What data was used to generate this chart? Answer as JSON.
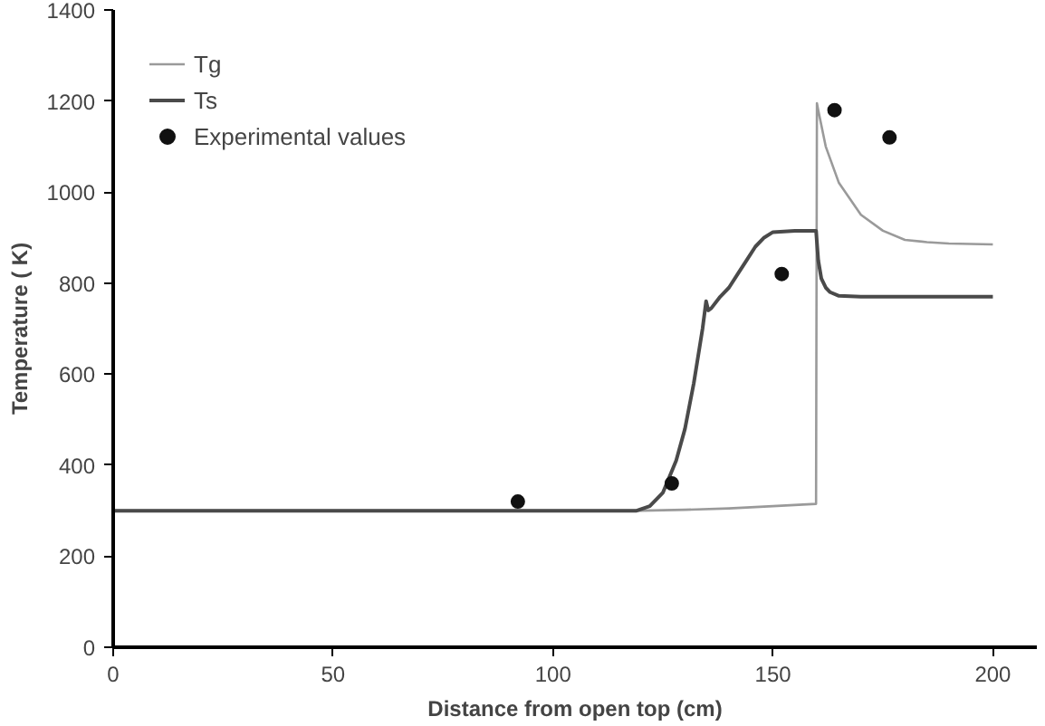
{
  "chart_data": {
    "type": "line",
    "xlabel": "Distance from open top (cm)",
    "ylabel": "Temperature ( K)",
    "xlim": [
      0,
      210
    ],
    "ylim": [
      0,
      1400
    ],
    "xticks": [
      0,
      50,
      100,
      150,
      200
    ],
    "yticks": [
      0,
      200,
      400,
      600,
      800,
      1000,
      1200,
      1400
    ],
    "grid": false,
    "legend": "top left",
    "series": [
      {
        "name": "Tg",
        "color": "#9a9a9a",
        "x": [
          0,
          60,
          120,
          130,
          140,
          150,
          159.8,
          160,
          160.3,
          162,
          165,
          170,
          175,
          180,
          185,
          190,
          200
        ],
        "values": [
          300,
          300,
          300,
          302,
          305,
          310,
          315,
          1195,
          1180,
          1100,
          1020,
          950,
          915,
          895,
          890,
          887,
          885
        ]
      },
      {
        "name": "Ts",
        "color": "#4a4a4a",
        "x": [
          0,
          60,
          119,
          122,
          125,
          128,
          130,
          132,
          134,
          134.8,
          135.3,
          136,
          138,
          140,
          142,
          144,
          146,
          148,
          150,
          155,
          159.8,
          160.3,
          161,
          162,
          163,
          165,
          170,
          200
        ],
        "values": [
          300,
          300,
          300,
          310,
          340,
          410,
          480,
          580,
          700,
          760,
          740,
          745,
          770,
          790,
          820,
          850,
          880,
          900,
          912,
          915,
          915,
          850,
          810,
          790,
          780,
          772,
          770,
          770
        ]
      },
      {
        "name": "Experimental values",
        "type": "scatter",
        "color": "#111111",
        "marker": "circle",
        "x": [
          92,
          127,
          152,
          164,
          176.5
        ],
        "values": [
          320,
          360,
          820,
          1180,
          1120
        ]
      }
    ]
  }
}
